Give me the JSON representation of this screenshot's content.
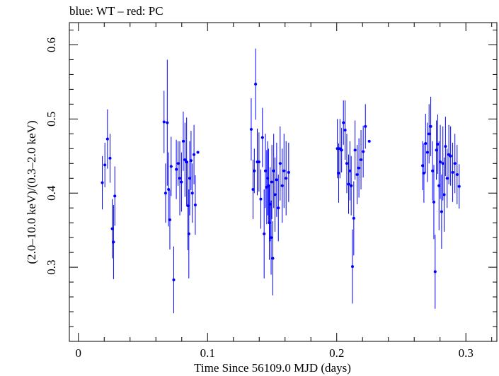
{
  "chart_data": {
    "type": "scatter",
    "title": "blue: WT – red: PC",
    "xlabel": "Time Since 56109.0 MJD (days)",
    "ylabel": "(2.0–10.0 keV)/(0.3–2.0 keV)",
    "xlim": [
      -0.007,
      0.324
    ],
    "ylim": [
      0.2,
      0.63
    ],
    "xticks": [
      0,
      0.1,
      0.2,
      0.3
    ],
    "xtick_labels": [
      "0",
      "0.1",
      "0.2",
      "0.3"
    ],
    "yticks": [
      0.3,
      0.4,
      0.5,
      0.6
    ],
    "ytick_labels": [
      "0.3",
      "0.4",
      "0.5",
      "0.6"
    ],
    "grid": false,
    "series": [
      {
        "color": "#0000ff",
        "points": [
          {
            "x": 0.0185,
            "y": 0.414,
            "err": 0.036
          },
          {
            "x": 0.0205,
            "y": 0.438,
            "err": 0.03
          },
          {
            "x": 0.0225,
            "y": 0.473,
            "err": 0.04
          },
          {
            "x": 0.0245,
            "y": 0.447,
            "err": 0.033
          },
          {
            "x": 0.0262,
            "y": 0.352,
            "err": 0.04
          },
          {
            "x": 0.0272,
            "y": 0.334,
            "err": 0.05
          },
          {
            "x": 0.0282,
            "y": 0.396,
            "err": 0.04
          },
          {
            "x": 0.0663,
            "y": 0.496,
            "err": 0.042
          },
          {
            "x": 0.0675,
            "y": 0.4,
            "err": 0.04
          },
          {
            "x": 0.0688,
            "y": 0.495,
            "err": 0.085
          },
          {
            "x": 0.0698,
            "y": 0.405,
            "err": 0.05
          },
          {
            "x": 0.0708,
            "y": 0.364,
            "err": 0.04
          },
          {
            "x": 0.0718,
            "y": 0.436,
            "err": 0.04
          },
          {
            "x": 0.0738,
            "y": 0.283,
            "err": 0.045
          },
          {
            "x": 0.0758,
            "y": 0.432,
            "err": 0.04
          },
          {
            "x": 0.0772,
            "y": 0.44,
            "err": 0.03
          },
          {
            "x": 0.0785,
            "y": 0.42,
            "err": 0.05
          },
          {
            "x": 0.0798,
            "y": 0.415,
            "err": 0.04
          },
          {
            "x": 0.0812,
            "y": 0.47,
            "err": 0.04
          },
          {
            "x": 0.0825,
            "y": 0.445,
            "err": 0.05
          },
          {
            "x": 0.0838,
            "y": 0.442,
            "err": 0.06
          },
          {
            "x": 0.0848,
            "y": 0.383,
            "err": 0.06
          },
          {
            "x": 0.0855,
            "y": 0.345,
            "err": 0.06
          },
          {
            "x": 0.0862,
            "y": 0.42,
            "err": 0.05
          },
          {
            "x": 0.0872,
            "y": 0.444,
            "err": 0.04
          },
          {
            "x": 0.0882,
            "y": 0.4,
            "err": 0.04
          },
          {
            "x": 0.0895,
            "y": 0.452,
            "err": 0.04
          },
          {
            "x": 0.0905,
            "y": 0.384,
            "err": 0.04
          },
          {
            "x": 0.0925,
            "y": 0.455,
            "err": 0.0
          },
          {
            "x": 0.1338,
            "y": 0.486,
            "err": 0.042
          },
          {
            "x": 0.1352,
            "y": 0.405,
            "err": 0.04
          },
          {
            "x": 0.1362,
            "y": 0.43,
            "err": 0.03
          },
          {
            "x": 0.1372,
            "y": 0.547,
            "err": 0.048
          },
          {
            "x": 0.1385,
            "y": 0.442,
            "err": 0.045
          },
          {
            "x": 0.1398,
            "y": 0.442,
            "err": 0.04
          },
          {
            "x": 0.1412,
            "y": 0.392,
            "err": 0.04
          },
          {
            "x": 0.1425,
            "y": 0.475,
            "err": 0.04
          },
          {
            "x": 0.1438,
            "y": 0.345,
            "err": 0.06
          },
          {
            "x": 0.1448,
            "y": 0.43,
            "err": 0.05
          },
          {
            "x": 0.1458,
            "y": 0.408,
            "err": 0.05
          },
          {
            "x": 0.1465,
            "y": 0.42,
            "err": 0.05
          },
          {
            "x": 0.1472,
            "y": 0.41,
            "err": 0.05
          },
          {
            "x": 0.1478,
            "y": 0.36,
            "err": 0.05
          },
          {
            "x": 0.1485,
            "y": 0.385,
            "err": 0.05
          },
          {
            "x": 0.1492,
            "y": 0.34,
            "err": 0.05
          },
          {
            "x": 0.1498,
            "y": 0.415,
            "err": 0.05
          },
          {
            "x": 0.1505,
            "y": 0.312,
            "err": 0.05
          },
          {
            "x": 0.1512,
            "y": 0.43,
            "err": 0.05
          },
          {
            "x": 0.1522,
            "y": 0.398,
            "err": 0.05
          },
          {
            "x": 0.1535,
            "y": 0.418,
            "err": 0.05
          },
          {
            "x": 0.1548,
            "y": 0.38,
            "err": 0.045
          },
          {
            "x": 0.1562,
            "y": 0.44,
            "err": 0.05
          },
          {
            "x": 0.1578,
            "y": 0.41,
            "err": 0.05
          },
          {
            "x": 0.1592,
            "y": 0.43,
            "err": 0.05
          },
          {
            "x": 0.1608,
            "y": 0.42,
            "err": 0.05
          },
          {
            "x": 0.1628,
            "y": 0.428,
            "err": 0.04
          },
          {
            "x": 0.2005,
            "y": 0.46,
            "err": 0.04
          },
          {
            "x": 0.2015,
            "y": 0.427,
            "err": 0.04
          },
          {
            "x": 0.2025,
            "y": 0.46,
            "err": 0.04
          },
          {
            "x": 0.2038,
            "y": 0.458,
            "err": 0.03
          },
          {
            "x": 0.2052,
            "y": 0.495,
            "err": 0.03
          },
          {
            "x": 0.2065,
            "y": 0.485,
            "err": 0.04
          },
          {
            "x": 0.2078,
            "y": 0.44,
            "err": 0.04
          },
          {
            "x": 0.2092,
            "y": 0.412,
            "err": 0.04
          },
          {
            "x": 0.2102,
            "y": 0.43,
            "err": 0.04
          },
          {
            "x": 0.2112,
            "y": 0.41,
            "err": 0.04
          },
          {
            "x": 0.2122,
            "y": 0.301,
            "err": 0.05
          },
          {
            "x": 0.2132,
            "y": 0.366,
            "err": 0.05
          },
          {
            "x": 0.2142,
            "y": 0.458,
            "err": 0.04
          },
          {
            "x": 0.2158,
            "y": 0.425,
            "err": 0.04
          },
          {
            "x": 0.2172,
            "y": 0.434,
            "err": 0.04
          },
          {
            "x": 0.2188,
            "y": 0.445,
            "err": 0.04
          },
          {
            "x": 0.2205,
            "y": 0.456,
            "err": 0.035
          },
          {
            "x": 0.2222,
            "y": 0.49,
            "err": 0.03
          },
          {
            "x": 0.2252,
            "y": 0.47,
            "err": 0.0
          },
          {
            "x": 0.2665,
            "y": 0.437,
            "err": 0.033
          },
          {
            "x": 0.2675,
            "y": 0.427,
            "err": 0.04
          },
          {
            "x": 0.2688,
            "y": 0.467,
            "err": 0.04
          },
          {
            "x": 0.2702,
            "y": 0.455,
            "err": 0.04
          },
          {
            "x": 0.2715,
            "y": 0.48,
            "err": 0.04
          },
          {
            "x": 0.2728,
            "y": 0.49,
            "err": 0.04
          },
          {
            "x": 0.2742,
            "y": 0.43,
            "err": 0.04
          },
          {
            "x": 0.2752,
            "y": 0.388,
            "err": 0.05
          },
          {
            "x": 0.2762,
            "y": 0.294,
            "err": 0.05
          },
          {
            "x": 0.2772,
            "y": 0.458,
            "err": 0.04
          },
          {
            "x": 0.2782,
            "y": 0.466,
            "err": 0.04
          },
          {
            "x": 0.2792,
            "y": 0.41,
            "err": 0.06
          },
          {
            "x": 0.2802,
            "y": 0.442,
            "err": 0.05
          },
          {
            "x": 0.2812,
            "y": 0.375,
            "err": 0.05
          },
          {
            "x": 0.2822,
            "y": 0.44,
            "err": 0.05
          },
          {
            "x": 0.2832,
            "y": 0.398,
            "err": 0.05
          },
          {
            "x": 0.2842,
            "y": 0.463,
            "err": 0.04
          },
          {
            "x": 0.2855,
            "y": 0.42,
            "err": 0.04
          },
          {
            "x": 0.2868,
            "y": 0.452,
            "err": 0.04
          },
          {
            "x": 0.2882,
            "y": 0.45,
            "err": 0.04
          },
          {
            "x": 0.2898,
            "y": 0.428,
            "err": 0.04
          },
          {
            "x": 0.2915,
            "y": 0.44,
            "err": 0.04
          },
          {
            "x": 0.2932,
            "y": 0.425,
            "err": 0.04
          },
          {
            "x": 0.2948,
            "y": 0.409,
            "err": 0.03
          }
        ]
      }
    ]
  }
}
